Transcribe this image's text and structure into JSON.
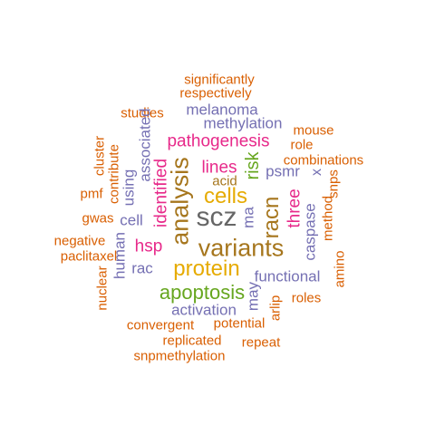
{
  "colors": {
    "orange": "#D95F02",
    "purple": "#7570B3",
    "magenta": "#E7298A",
    "green": "#66A61E",
    "gold": "#E6AB02",
    "brown": "#A6761D",
    "gray": "#666666"
  },
  "words": {
    "significantly": "significantly",
    "respectively": "respectively",
    "melanoma": "melanoma",
    "studies": "studies",
    "methylation": "methylation",
    "mouse": "mouse",
    "pathogenesis": "pathogenesis",
    "role": "role",
    "cluster": "cluster",
    "associated": "associated",
    "identified": "identified",
    "lines": "lines",
    "risk": "risk",
    "psmr": "psmr",
    "combinations": "combinations",
    "contribute": "contribute",
    "analysis": "analysis",
    "acid": "acid",
    "x": "x",
    "snps": "snps",
    "using": "using",
    "cells": "cells",
    "pmf": "pmf",
    "ma": "ma",
    "three": "three",
    "gwas": "gwas",
    "cell": "cell",
    "scz": "scz",
    "racn": "racn",
    "caspase": "caspase",
    "method": "method",
    "negative": "negative",
    "human": "human",
    "hsp": "hsp",
    "variants": "variants",
    "paclitaxel": "paclitaxel",
    "amino": "amino",
    "rac": "rac",
    "protein": "protein",
    "functional": "functional",
    "nuclear": "nuclear",
    "apoptosis": "apoptosis",
    "may": "may",
    "roles": "roles",
    "arlip": "arlip",
    "activation": "activation",
    "convergent": "convergent",
    "potential": "potential",
    "replicated": "replicated",
    "repeat": "repeat",
    "snpmethylation": "snpmethylation"
  }
}
